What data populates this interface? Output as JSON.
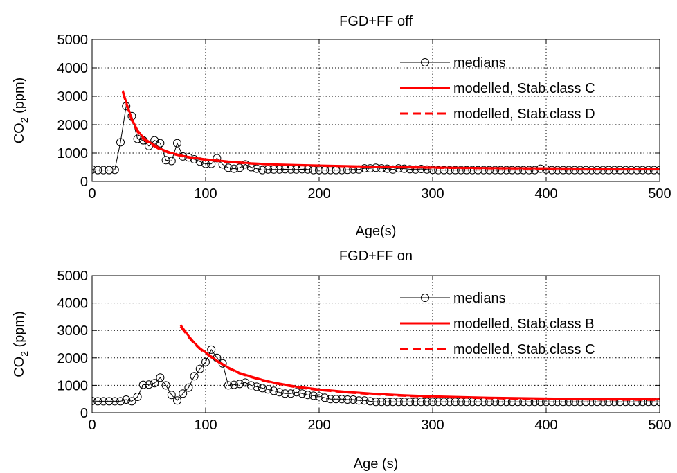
{
  "figure": {
    "background": "#ffffff",
    "axes_color": "#000000",
    "grid_color": "#000000",
    "medians_color": "#000000",
    "model_color": "#ff0000"
  },
  "chart_data": [
    {
      "type": "line",
      "title": "FGD+FF off",
      "xlabel": "Age(s)",
      "ylabel": "CO",
      "ylabel_sub": "2",
      "ylabel_unit": " (ppm)",
      "xlim": [
        0,
        500
      ],
      "ylim": [
        0,
        5000
      ],
      "xticks": [
        0,
        100,
        200,
        300,
        400,
        500
      ],
      "yticks": [
        0,
        1000,
        2000,
        3000,
        4000,
        5000
      ],
      "xtick_labels": [
        "0",
        "100",
        "200",
        "300",
        "400",
        "500"
      ],
      "ytick_labels": [
        "0",
        "1000",
        "2000",
        "3000",
        "4000",
        "5000"
      ],
      "grid": true,
      "legend_position": "top-right",
      "series": [
        {
          "name": "medians",
          "style": "line-circle",
          "x": [
            0,
            5,
            10,
            15,
            20,
            25,
            30,
            35,
            40,
            45,
            50,
            55,
            60,
            65,
            70,
            75,
            80,
            85,
            90,
            95,
            100,
            105,
            110,
            115,
            120,
            125,
            130,
            135,
            140,
            145,
            150,
            155,
            160,
            165,
            170,
            175,
            180,
            185,
            190,
            195,
            200,
            205,
            210,
            215,
            220,
            225,
            230,
            235,
            240,
            245,
            250,
            255,
            260,
            265,
            270,
            275,
            280,
            285,
            290,
            295,
            300,
            305,
            310,
            315,
            320,
            325,
            330,
            335,
            340,
            345,
            350,
            355,
            360,
            365,
            370,
            375,
            380,
            385,
            390,
            395,
            400,
            405,
            410,
            415,
            420,
            425,
            430,
            435,
            440,
            445,
            450,
            455,
            460,
            465,
            470,
            475,
            480,
            485,
            490,
            495,
            500
          ],
          "y": [
            420,
            400,
            400,
            400,
            410,
            1380,
            2650,
            2300,
            1500,
            1450,
            1250,
            1450,
            1350,
            750,
            720,
            1350,
            880,
            850,
            780,
            700,
            620,
            620,
            820,
            600,
            480,
            450,
            480,
            600,
            500,
            450,
            400,
            420,
            420,
            420,
            430,
            420,
            420,
            430,
            420,
            400,
            400,
            400,
            400,
            400,
            400,
            410,
            420,
            420,
            460,
            460,
            480,
            460,
            450,
            420,
            460,
            450,
            430,
            420,
            440,
            420,
            410,
            400,
            400,
            400,
            400,
            400,
            400,
            400,
            400,
            400,
            400,
            400,
            400,
            400,
            400,
            400,
            400,
            400,
            400,
            450,
            420,
            400,
            400,
            400,
            400,
            400,
            400,
            400,
            400,
            400,
            400,
            400,
            400,
            400,
            400,
            400,
            400,
            400,
            400,
            400,
            400
          ]
        },
        {
          "name": "modelled, Stab.class C",
          "style": "solid",
          "x": [
            27,
            30,
            35,
            40,
            45,
            50,
            60,
            70,
            80,
            90,
            100,
            120,
            140,
            160,
            180,
            200,
            250,
            300,
            350,
            400,
            450,
            500
          ],
          "y": [
            3200,
            2800,
            2200,
            1800,
            1550,
            1400,
            1150,
            1000,
            900,
            830,
            780,
            700,
            640,
            600,
            580,
            560,
            520,
            490,
            470,
            460,
            450,
            440
          ]
        },
        {
          "name": "modelled, Stab.class D",
          "style": "dashed",
          "x": [
            27,
            30,
            35,
            40,
            45,
            50,
            60,
            70,
            80,
            90,
            100,
            120,
            140,
            160,
            180,
            200,
            250,
            300,
            350,
            400,
            450,
            500
          ],
          "y": [
            3150,
            2750,
            2150,
            1750,
            1500,
            1350,
            1120,
            980,
            880,
            810,
            760,
            680,
            630,
            590,
            570,
            550,
            510,
            480,
            460,
            450,
            440,
            430
          ]
        }
      ]
    },
    {
      "type": "line",
      "title": "FGD+FF on",
      "xlabel": "Age (s)",
      "ylabel": "CO",
      "ylabel_sub": "2",
      "ylabel_unit": " (ppm)",
      "xlim": [
        0,
        500
      ],
      "ylim": [
        0,
        5000
      ],
      "xticks": [
        0,
        100,
        200,
        300,
        400,
        500
      ],
      "yticks": [
        0,
        1000,
        2000,
        3000,
        4000,
        5000
      ],
      "xtick_labels": [
        "0",
        "100",
        "200",
        "300",
        "400",
        "500"
      ],
      "ytick_labels": [
        "0",
        "1000",
        "2000",
        "3000",
        "4000",
        "5000"
      ],
      "grid": true,
      "legend_position": "top-right",
      "series": [
        {
          "name": "medians",
          "style": "line-circle",
          "x": [
            0,
            5,
            10,
            15,
            20,
            25,
            30,
            35,
            40,
            45,
            50,
            55,
            60,
            65,
            70,
            75,
            80,
            85,
            90,
            95,
            100,
            105,
            110,
            115,
            120,
            125,
            130,
            135,
            140,
            145,
            150,
            155,
            160,
            165,
            170,
            175,
            180,
            185,
            190,
            195,
            200,
            205,
            210,
            215,
            220,
            225,
            230,
            235,
            240,
            245,
            250,
            255,
            260,
            265,
            270,
            275,
            280,
            285,
            290,
            295,
            300,
            305,
            310,
            315,
            320,
            325,
            330,
            335,
            340,
            345,
            350,
            355,
            360,
            365,
            370,
            375,
            380,
            385,
            390,
            395,
            400,
            405,
            410,
            415,
            420,
            425,
            430,
            435,
            440,
            445,
            450,
            455,
            460,
            465,
            470,
            475,
            480,
            485,
            490,
            495,
            500
          ],
          "y": [
            430,
            420,
            420,
            420,
            420,
            420,
            480,
            420,
            580,
            1020,
            1030,
            1080,
            1280,
            1000,
            650,
            450,
            700,
            920,
            1330,
            1600,
            1850,
            2300,
            2000,
            1800,
            1000,
            1020,
            1050,
            1100,
            1000,
            950,
            900,
            850,
            800,
            750,
            700,
            700,
            750,
            700,
            650,
            620,
            600,
            550,
            500,
            500,
            500,
            480,
            480,
            450,
            450,
            420,
            400,
            400,
            400,
            400,
            400,
            400,
            400,
            400,
            400,
            400,
            400,
            400,
            400,
            400,
            400,
            400,
            400,
            400,
            400,
            400,
            400,
            400,
            400,
            400,
            400,
            400,
            400,
            400,
            400,
            400,
            400,
            400,
            400,
            400,
            400,
            400,
            400,
            400,
            400,
            400,
            400,
            400,
            400,
            400,
            400,
            400,
            400,
            400,
            400,
            400,
            400
          ]
        },
        {
          "name": "modelled, Stab.class B",
          "style": "solid",
          "x": [
            78,
            80,
            85,
            90,
            95,
            100,
            110,
            120,
            130,
            140,
            150,
            160,
            180,
            200,
            225,
            250,
            275,
            300,
            350,
            400,
            450,
            500
          ],
          "y": [
            3200,
            3080,
            2800,
            2550,
            2350,
            2200,
            1900,
            1650,
            1450,
            1320,
            1200,
            1100,
            950,
            850,
            760,
            690,
            640,
            600,
            550,
            520,
            500,
            490
          ]
        },
        {
          "name": "modelled, Stab.class C",
          "style": "dashed",
          "x": [
            78,
            80,
            85,
            90,
            95,
            100,
            110,
            120,
            130,
            140,
            150,
            160,
            180,
            200,
            225,
            250,
            275,
            300,
            350,
            400,
            450,
            500
          ],
          "y": [
            3150,
            3030,
            2760,
            2520,
            2320,
            2170,
            1880,
            1630,
            1430,
            1300,
            1180,
            1080,
            930,
            830,
            740,
            670,
            620,
            580,
            530,
            500,
            480,
            470
          ]
        }
      ]
    }
  ]
}
